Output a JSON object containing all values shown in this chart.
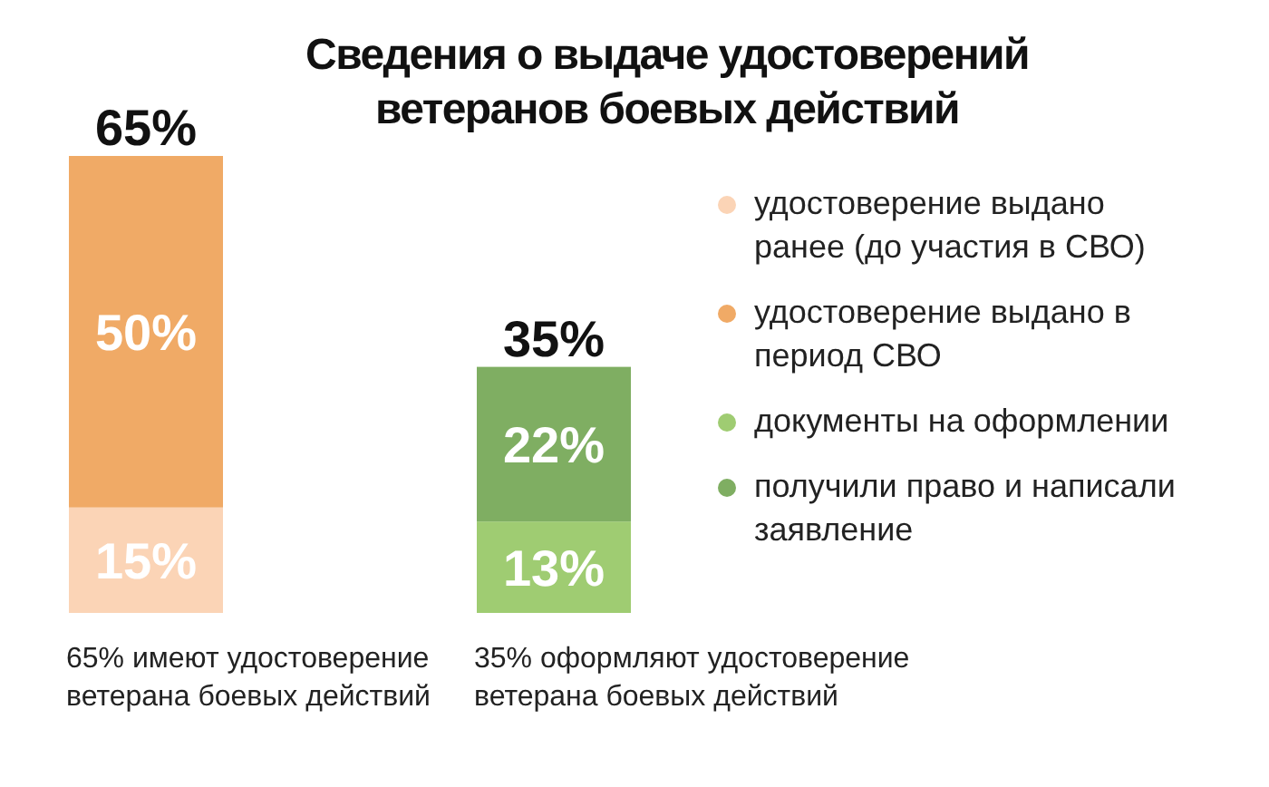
{
  "chart_data": {
    "type": "bar",
    "title": "Сведения о выдаче удостоверений ветеранов боевых действий",
    "categories": [
      "65% имеют удостоверение ветерана боевых действий",
      "35% оформляют удостоверение ветерана боевых действий"
    ],
    "stacked": true,
    "tick_labels": "x",
    "grid": false,
    "legend": "right",
    "series": [
      {
        "name": "удостоверение выдано ранее (до участия в СВО)",
        "color": "#fbd4b6",
        "values": [
          15,
          null
        ],
        "value_labels": [
          "15%",
          null
        ]
      },
      {
        "name": "удостоверение выдано в период СВО",
        "color": "#f0aa66",
        "values": [
          50,
          null
        ],
        "value_labels": [
          "50%",
          null
        ]
      },
      {
        "name": "документы на оформлении",
        "color": "#9fcc72",
        "values": [
          null,
          13
        ],
        "value_labels": [
          null,
          "13%"
        ]
      },
      {
        "name": "получили право и написали заявление",
        "color": "#7fae62",
        "values": [
          null,
          22
        ],
        "value_labels": [
          null,
          "22%"
        ]
      }
    ],
    "totals": [
      "65%",
      "35%"
    ]
  }
}
